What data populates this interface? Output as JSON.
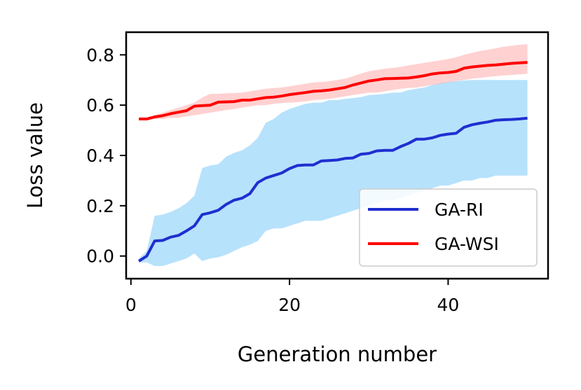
{
  "chart_data": {
    "type": "line",
    "title": "",
    "xlabel": "Generation number",
    "ylabel": "Loss value",
    "xlim": [
      -0.6,
      52.6
    ],
    "ylim": [
      -0.09,
      0.89
    ],
    "xticks": [
      0,
      20,
      40
    ],
    "xtick_labels": [
      "0",
      "20",
      "40"
    ],
    "yticks": [
      0.0,
      0.2,
      0.4,
      0.6,
      0.8
    ],
    "ytick_labels": [
      "0.0",
      "0.2",
      "0.4",
      "0.6",
      "0.8"
    ],
    "grid": false,
    "legend": {
      "placement": "lower-right",
      "entries": [
        "GA-RI",
        "GA-WSI"
      ]
    },
    "series": [
      {
        "name": "GA-RI",
        "color": "#1f2fd0",
        "band_color": "#87cefa",
        "x": [
          1,
          2,
          3,
          4,
          5,
          6,
          7,
          8,
          9,
          10,
          11,
          12,
          13,
          14,
          15,
          16,
          17,
          18,
          19,
          20,
          21,
          22,
          23,
          24,
          25,
          26,
          27,
          28,
          29,
          30,
          31,
          32,
          33,
          34,
          35,
          36,
          37,
          38,
          39,
          40,
          41,
          42,
          43,
          44,
          45,
          46,
          47,
          48,
          49,
          50
        ],
        "values": [
          -0.02,
          0.0,
          0.06,
          0.062,
          0.075,
          0.082,
          0.1,
          0.12,
          0.165,
          0.172,
          0.182,
          0.205,
          0.222,
          0.23,
          0.248,
          0.292,
          0.31,
          0.32,
          0.33,
          0.348,
          0.36,
          0.362,
          0.362,
          0.378,
          0.38,
          0.382,
          0.388,
          0.39,
          0.405,
          0.408,
          0.418,
          0.42,
          0.42,
          0.435,
          0.448,
          0.465,
          0.465,
          0.47,
          0.48,
          0.485,
          0.488,
          0.512,
          0.522,
          0.528,
          0.533,
          0.54,
          0.542,
          0.543,
          0.545,
          0.548
        ],
        "upper": [
          -0.01,
          0.02,
          0.16,
          0.165,
          0.175,
          0.19,
          0.21,
          0.24,
          0.35,
          0.36,
          0.365,
          0.395,
          0.41,
          0.42,
          0.44,
          0.47,
          0.53,
          0.545,
          0.57,
          0.585,
          0.595,
          0.605,
          0.61,
          0.61,
          0.62,
          0.62,
          0.625,
          0.628,
          0.632,
          0.64,
          0.642,
          0.645,
          0.65,
          0.65,
          0.66,
          0.665,
          0.67,
          0.68,
          0.688,
          0.692,
          0.695,
          0.698,
          0.7,
          0.7,
          0.7,
          0.7,
          0.7,
          0.7,
          0.7,
          0.7
        ],
        "lower": [
          -0.025,
          -0.025,
          -0.04,
          -0.04,
          -0.03,
          -0.02,
          -0.01,
          0.01,
          -0.02,
          -0.01,
          -0.005,
          0.005,
          0.02,
          0.035,
          0.045,
          0.06,
          0.1,
          0.11,
          0.11,
          0.12,
          0.13,
          0.14,
          0.14,
          0.14,
          0.15,
          0.16,
          0.17,
          0.18,
          0.19,
          0.2,
          0.21,
          0.22,
          0.22,
          0.23,
          0.24,
          0.25,
          0.26,
          0.27,
          0.28,
          0.28,
          0.29,
          0.3,
          0.3,
          0.31,
          0.31,
          0.32,
          0.32,
          0.32,
          0.32,
          0.32
        ]
      },
      {
        "name": "GA-WSI",
        "color": "#ff0000",
        "band_color": "#ff9999",
        "x": [
          1,
          2,
          3,
          4,
          5,
          6,
          7,
          8,
          9,
          10,
          11,
          12,
          13,
          14,
          15,
          16,
          17,
          18,
          19,
          20,
          21,
          22,
          23,
          24,
          25,
          26,
          27,
          28,
          29,
          30,
          31,
          32,
          33,
          34,
          35,
          36,
          37,
          38,
          39,
          40,
          41,
          42,
          43,
          44,
          45,
          46,
          47,
          48,
          49,
          50
        ],
        "values": [
          0.545,
          0.545,
          0.553,
          0.558,
          0.566,
          0.572,
          0.578,
          0.596,
          0.598,
          0.6,
          0.612,
          0.613,
          0.614,
          0.62,
          0.62,
          0.625,
          0.63,
          0.632,
          0.636,
          0.642,
          0.646,
          0.65,
          0.655,
          0.657,
          0.66,
          0.665,
          0.67,
          0.68,
          0.688,
          0.696,
          0.7,
          0.705,
          0.706,
          0.707,
          0.708,
          0.712,
          0.717,
          0.724,
          0.728,
          0.73,
          0.734,
          0.747,
          0.752,
          0.755,
          0.758,
          0.76,
          0.763,
          0.766,
          0.768,
          0.77
        ],
        "upper": [
          0.55,
          0.55,
          0.56,
          0.57,
          0.58,
          0.59,
          0.6,
          0.61,
          0.63,
          0.645,
          0.645,
          0.647,
          0.648,
          0.65,
          0.655,
          0.66,
          0.665,
          0.668,
          0.67,
          0.675,
          0.68,
          0.685,
          0.69,
          0.692,
          0.695,
          0.7,
          0.705,
          0.715,
          0.725,
          0.735,
          0.74,
          0.745,
          0.748,
          0.752,
          0.758,
          0.763,
          0.768,
          0.773,
          0.778,
          0.783,
          0.79,
          0.8,
          0.808,
          0.815,
          0.82,
          0.826,
          0.832,
          0.836,
          0.84,
          0.842
        ],
        "lower": [
          0.54,
          0.54,
          0.545,
          0.545,
          0.55,
          0.55,
          0.555,
          0.56,
          0.565,
          0.57,
          0.575,
          0.58,
          0.585,
          0.59,
          0.595,
          0.6,
          0.6,
          0.605,
          0.608,
          0.61,
          0.612,
          0.615,
          0.62,
          0.622,
          0.625,
          0.63,
          0.635,
          0.64,
          0.645,
          0.65,
          0.65,
          0.655,
          0.66,
          0.665,
          0.668,
          0.67,
          0.675,
          0.68,
          0.685,
          0.69,
          0.695,
          0.7,
          0.705,
          0.708,
          0.712,
          0.715,
          0.718,
          0.72,
          0.722,
          0.725
        ]
      }
    ]
  }
}
